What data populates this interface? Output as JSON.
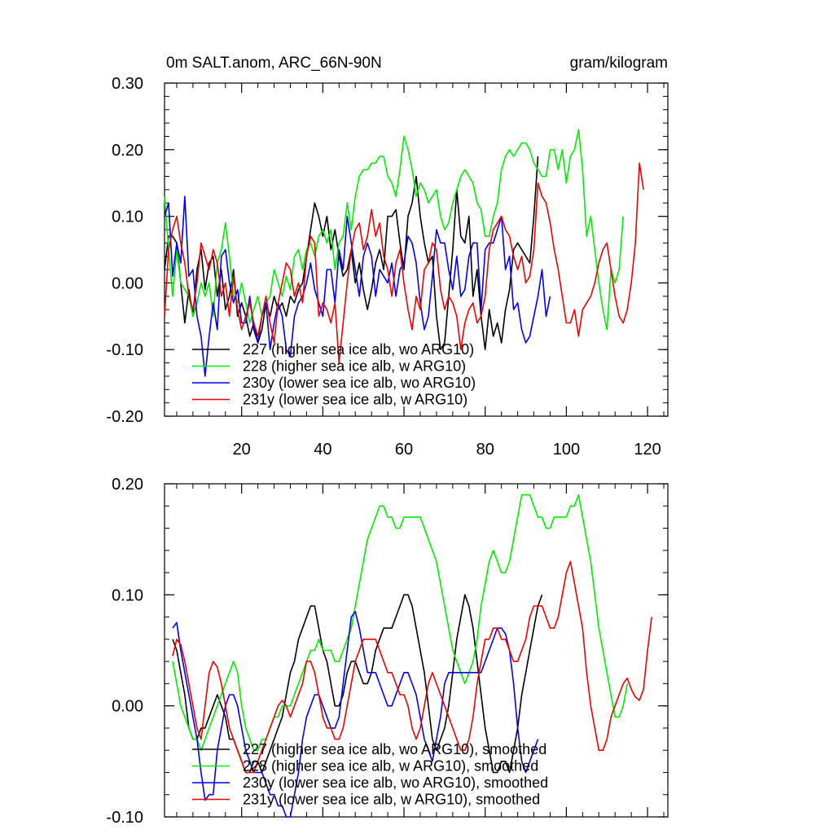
{
  "chart_data": [
    {
      "type": "line",
      "title_left": "0m SALT.anom, ARC_66N-90N",
      "title_right": "gram/kilogram",
      "xlim": [
        1,
        125
      ],
      "ylim": [
        -0.2,
        0.3
      ],
      "x_ticks": [
        20,
        40,
        60,
        80,
        100,
        120
      ],
      "x_tick_labels": [
        "20",
        "40",
        "60",
        "80",
        "100",
        "120"
      ],
      "y_ticks": [
        -0.2,
        -0.1,
        0.0,
        0.1,
        0.2,
        0.3
      ],
      "y_tick_labels": [
        "-0.20",
        "-0.10",
        "0.00",
        "0.10",
        "0.20",
        "0.30"
      ],
      "series": [
        {
          "name": "227 (higher sea ice alb, wo ARG10)",
          "color": "#000000",
          "x0": 1,
          "values": [
            0.02,
            0.07,
            0.07,
            0.06,
            0.0,
            -0.06,
            -0.01,
            -0.05,
            0.02,
            0.05,
            -0.01,
            0.03,
            0.04,
            -0.02,
            0.02,
            -0.04,
            -0.02,
            0.02,
            -0.05,
            -0.03,
            -0.05,
            -0.08,
            -0.06,
            -0.09,
            -0.07,
            -0.03,
            -0.05,
            -0.02,
            -0.04,
            -0.03,
            -0.05,
            -0.02,
            -0.03,
            -0.01,
            0.0,
            0.04,
            0.08,
            0.12,
            0.1,
            0.07,
            0.1,
            0.05,
            0.08,
            0.04,
            0.01,
            0.02,
            0.05,
            0.0,
            0.03,
            -0.01,
            -0.04,
            -0.01,
            0.03,
            0.05,
            0.02,
            0.1,
            0.1,
            0.11,
            0.06,
            0.02,
            0.1,
            0.12,
            0.16,
            0.1,
            0.06,
            0.03,
            0.04,
            -0.05,
            -0.1,
            -0.09,
            -0.02,
            0.05,
            0.14,
            0.07,
            0.06,
            0.1,
            -0.02,
            0.02,
            -0.05,
            -0.1,
            -0.04,
            -0.08,
            -0.06,
            -0.09,
            -0.04,
            -0.01,
            0.05,
            0.06,
            0.05,
            0.04,
            0.03,
            0.1,
            0.19
          ]
        },
        {
          "name": "228 (higher sea ice alb, w ARG10)",
          "color": "#00ee00",
          "x0": 1,
          "values": [
            0.13,
            0.05,
            -0.02,
            0.05,
            0.0,
            -0.01,
            -0.02,
            -0.05,
            -0.03,
            0.0,
            -0.02,
            0.0,
            -0.05,
            0.03,
            0.05,
            0.09,
            0.04,
            -0.02,
            -0.03,
            0.0,
            -0.03,
            -0.06,
            -0.04,
            -0.02,
            -0.05,
            -0.03,
            -0.02,
            0.02,
            0.0,
            -0.02,
            0.01,
            -0.01,
            0.04,
            0.05,
            0.02,
            0.05,
            0.06,
            0.04,
            0.07,
            0.08,
            0.06,
            0.08,
            0.02,
            0.06,
            0.07,
            0.12,
            0.08,
            0.13,
            0.16,
            0.17,
            0.17,
            0.18,
            0.18,
            0.19,
            0.19,
            0.16,
            0.15,
            0.13,
            0.17,
            0.22,
            0.2,
            0.17,
            0.13,
            0.15,
            0.14,
            0.12,
            0.13,
            0.14,
            0.1,
            0.08,
            0.09,
            0.12,
            0.14,
            0.16,
            0.17,
            0.16,
            0.15,
            0.12,
            0.11,
            0.07,
            0.07,
            0.1,
            0.12,
            0.17,
            0.19,
            0.2,
            0.19,
            0.2,
            0.21,
            0.21,
            0.2,
            0.18,
            0.17,
            0.16,
            0.16,
            0.2,
            0.2,
            0.17,
            0.2,
            0.15,
            0.19,
            0.2,
            0.23,
            0.17,
            0.07,
            0.1,
            0.05,
            0.0,
            -0.04,
            -0.07,
            0.02,
            0.0,
            0.02,
            0.1
          ]
        },
        {
          "name": "230y (lower sea ice alb, wo ARG10)",
          "color": "#0000ee",
          "x0": 1,
          "values": [
            0.1,
            0.12,
            0.01,
            0.06,
            0.03,
            0.13,
            0.01,
            0.02,
            -0.05,
            -0.08,
            -0.14,
            -0.08,
            -0.03,
            -0.07,
            0.04,
            0.05,
            0.0,
            -0.03,
            -0.01,
            -0.06,
            -0.06,
            -0.02,
            -0.07,
            -0.09,
            -0.05,
            -0.03,
            -0.1,
            -0.06,
            -0.03,
            -0.05,
            -0.1,
            -0.11,
            -0.05,
            -0.03,
            -0.02,
            0.0,
            0.03,
            -0.01,
            -0.03,
            -0.05,
            0.02,
            0.02,
            -0.03,
            0.05,
            0.02,
            0.1,
            0.06,
            0.02,
            -0.02,
            0.04,
            0.06,
            0.04,
            -0.02,
            0.02,
            0.01,
            0.0,
            0.03,
            -0.02,
            0.02,
            0.03,
            0.07,
            0.06,
            0.03,
            -0.03,
            -0.07,
            -0.05,
            0.01,
            0.08,
            0.06,
            0.06,
            0.02,
            -0.01,
            0.04,
            -0.02,
            -0.01,
            0.04,
            0.06,
            0.06,
            -0.04,
            0.05,
            0.06,
            0.06,
            0.08,
            0.1,
            0.02,
            0.04,
            -0.04,
            -0.03,
            -0.07,
            -0.09,
            -0.08,
            -0.05,
            -0.02,
            0.02,
            -0.05,
            -0.02
          ]
        },
        {
          "name": "231y (lower sea ice alb, w ARG10)",
          "color": "#ee0000",
          "x0": 1,
          "values": [
            -0.05,
            0.05,
            0.08,
            0.1,
            0.06,
            0.03,
            -0.02,
            -0.04,
            0.0,
            0.06,
            0.04,
            0.02,
            0.05,
            0.03,
            -0.02,
            0.0,
            -0.05,
            0.01,
            -0.04,
            -0.07,
            -0.05,
            -0.03,
            -0.06,
            -0.08,
            -0.05,
            -0.02,
            -0.06,
            -0.09,
            -0.03,
            0.0,
            0.03,
            0.02,
            -0.02,
            0.0,
            -0.03,
            0.04,
            0.07,
            0.06,
            -0.05,
            -0.03,
            -0.04,
            -0.06,
            -0.03,
            -0.12,
            -0.06,
            0.0,
            0.05,
            0.08,
            0.09,
            0.05,
            0.07,
            0.11,
            0.07,
            0.09,
            0.04,
            0.02,
            -0.02,
            0.03,
            0.05,
            0.0,
            -0.04,
            -0.07,
            -0.02,
            -0.04,
            0.02,
            0.03,
            0.06,
            0.05,
            -0.01,
            -0.04,
            -0.02,
            -0.03,
            -0.05,
            -0.1,
            -0.06,
            -0.04,
            -0.03,
            -0.06,
            -0.05,
            -0.02,
            0.05,
            0.08,
            0.09,
            0.1,
            0.08,
            0.07,
            0.04,
            0.02,
            0.04,
            0.0,
            0.01,
            0.05,
            0.15,
            0.13,
            0.12,
            0.09,
            0.05,
            0.02,
            -0.02,
            -0.06,
            -0.06,
            -0.04,
            -0.08,
            -0.04,
            -0.03,
            -0.02,
            0.0,
            0.03,
            0.05,
            0.06,
            0.02,
            -0.02,
            -0.05,
            -0.06,
            -0.04,
            0.0,
            0.06,
            0.18,
            0.14
          ]
        }
      ],
      "legend": [
        "227 (higher sea ice alb, wo ARG10)",
        "228 (higher sea ice alb, w ARG10)",
        "230y (lower sea ice alb, wo ARG10)",
        "231y (lower sea ice alb, w ARG10)"
      ]
    },
    {
      "type": "line",
      "xlim": [
        1,
        125
      ],
      "ylim": [
        -0.1,
        0.2
      ],
      "x_ticks": [
        20,
        40,
        60,
        80,
        100,
        120
      ],
      "y_ticks": [
        -0.1,
        0.0,
        0.1,
        0.2
      ],
      "y_tick_labels": [
        "-0.10",
        "0.00",
        "0.10",
        "0.20"
      ],
      "series": [
        {
          "name": "227 (higher sea ice alb, wo ARG10), smoothed",
          "color": "#000000",
          "x0": 3,
          "values": [
            0.06,
            0.05,
            0.03,
            0.01,
            -0.02,
            -0.03,
            -0.03,
            -0.02,
            -0.02,
            -0.01,
            0.0,
            0.01,
            0.0,
            -0.01,
            -0.03,
            -0.03,
            -0.04,
            -0.05,
            -0.06,
            -0.06,
            -0.05,
            -0.05,
            -0.06,
            -0.05,
            -0.04,
            -0.03,
            -0.02,
            -0.01,
            0.01,
            0.03,
            0.04,
            0.06,
            0.07,
            0.08,
            0.09,
            0.09,
            0.07,
            0.05,
            0.04,
            0.02,
            0.0,
            0.0,
            0.01,
            0.03,
            0.04,
            0.04,
            0.03,
            0.02,
            0.02,
            0.03,
            0.05,
            0.06,
            0.07,
            0.07,
            0.07,
            0.08,
            0.09,
            0.1,
            0.1,
            0.09,
            0.07,
            0.05,
            0.03,
            0.0,
            -0.03,
            -0.04,
            -0.03,
            -0.02,
            0.0,
            0.03,
            0.06,
            0.08,
            0.1,
            0.09,
            0.07,
            0.04,
            0.01,
            -0.02,
            -0.04,
            -0.06,
            -0.06,
            -0.05,
            -0.05,
            -0.06,
            -0.04,
            -0.02,
            0.01,
            0.03,
            0.05,
            0.07,
            0.09,
            0.1
          ]
        },
        {
          "name": "228 (higher sea ice alb, w ARG10), smoothed",
          "color": "#00ee00",
          "x0": 3,
          "values": [
            0.04,
            0.02,
            0.0,
            -0.01,
            -0.02,
            -0.03,
            -0.03,
            -0.04,
            -0.03,
            -0.02,
            -0.01,
            0.0,
            0.01,
            0.02,
            0.03,
            0.04,
            0.03,
            0.0,
            -0.02,
            -0.03,
            -0.04,
            -0.04,
            -0.03,
            -0.03,
            -0.02,
            -0.01,
            -0.01,
            0.0,
            0.0,
            0.0,
            0.01,
            0.02,
            0.03,
            0.04,
            0.05,
            0.05,
            0.06,
            0.05,
            0.05,
            0.05,
            0.04,
            0.04,
            0.05,
            0.06,
            0.07,
            0.09,
            0.11,
            0.13,
            0.15,
            0.16,
            0.17,
            0.18,
            0.18,
            0.17,
            0.17,
            0.16,
            0.16,
            0.17,
            0.17,
            0.17,
            0.17,
            0.17,
            0.16,
            0.15,
            0.14,
            0.13,
            0.11,
            0.09,
            0.07,
            0.05,
            0.04,
            0.03,
            0.02,
            0.03,
            0.04,
            0.06,
            0.09,
            0.11,
            0.13,
            0.14,
            0.13,
            0.12,
            0.12,
            0.13,
            0.15,
            0.17,
            0.19,
            0.19,
            0.19,
            0.18,
            0.17,
            0.17,
            0.16,
            0.16,
            0.17,
            0.17,
            0.17,
            0.17,
            0.18,
            0.18,
            0.19,
            0.17,
            0.15,
            0.13,
            0.1,
            0.07,
            0.05,
            0.03,
            0.01,
            -0.01,
            -0.01,
            0.0,
            0.02
          ]
        },
        {
          "name": "230y (lower sea ice alb, wo ARG10), smoothed",
          "color": "#0000ee",
          "x0": 3,
          "values": [
            0.07,
            0.075,
            0.05,
            0.03,
            0.01,
            -0.01,
            -0.03,
            -0.06,
            -0.085,
            -0.08,
            -0.08,
            -0.04,
            -0.02,
            0.0,
            0.01,
            0.01,
            0.0,
            -0.02,
            -0.04,
            -0.05,
            -0.06,
            -0.06,
            -0.06,
            -0.07,
            -0.08,
            -0.08,
            -0.09,
            -0.09,
            -0.1,
            -0.1,
            -0.08,
            -0.06,
            -0.03,
            -0.01,
            0.0,
            0.01,
            0.01,
            0.0,
            -0.01,
            -0.02,
            -0.02,
            -0.01,
            0.02,
            0.05,
            0.08,
            0.085,
            0.07,
            0.05,
            0.03,
            0.03,
            0.03,
            0.02,
            0.01,
            0.0,
            0.0,
            0.01,
            0.02,
            0.03,
            0.03,
            0.02,
            0.01,
            -0.01,
            -0.03,
            -0.04,
            -0.05,
            -0.03,
            -0.01,
            0.02,
            0.03,
            0.03,
            0.03,
            0.03,
            0.03,
            0.03,
            0.03,
            0.03,
            0.03,
            0.04,
            0.05,
            0.06,
            0.07,
            0.07,
            0.065,
            0.05,
            0.02,
            -0.02,
            -0.05,
            -0.06,
            -0.05,
            -0.04,
            -0.03
          ]
        },
        {
          "name": "231y (lower sea ice alb, w ARG10), smoothed",
          "color": "#ee0000",
          "x0": 3,
          "values": [
            0.045,
            0.06,
            0.055,
            0.04,
            0.02,
            0.0,
            -0.02,
            -0.03,
            0.0,
            0.03,
            0.04,
            0.035,
            0.02,
            0.0,
            -0.02,
            -0.03,
            -0.04,
            -0.05,
            -0.06,
            -0.06,
            -0.06,
            -0.05,
            -0.04,
            -0.03,
            -0.02,
            -0.01,
            0.0,
            0.005,
            0.0,
            -0.01,
            0.0,
            0.01,
            0.02,
            0.04,
            0.04,
            0.03,
            0.01,
            -0.01,
            -0.02,
            -0.02,
            -0.03,
            -0.03,
            -0.02,
            0.0,
            0.02,
            0.04,
            0.05,
            0.06,
            0.06,
            0.06,
            0.06,
            0.05,
            0.04,
            0.03,
            0.03,
            0.02,
            0.01,
            0.01,
            0.0,
            -0.02,
            -0.03,
            -0.02,
            0.0,
            0.02,
            0.03,
            0.02,
            0.01,
            0.0,
            -0.01,
            -0.02,
            -0.03,
            -0.04,
            -0.04,
            -0.03,
            -0.01,
            0.02,
            0.04,
            0.06,
            0.06,
            0.07,
            0.07,
            0.06,
            0.06,
            0.05,
            0.04,
            0.04,
            0.05,
            0.06,
            0.08,
            0.09,
            0.09,
            0.09,
            0.08,
            0.07,
            0.07,
            0.08,
            0.1,
            0.12,
            0.13,
            0.11,
            0.09,
            0.07,
            0.03,
            0.0,
            -0.02,
            -0.04,
            -0.04,
            -0.03,
            -0.01,
            0.0,
            0.01,
            0.02,
            0.025,
            0.015,
            0.008,
            0.005,
            0.015,
            0.05,
            0.08
          ]
        }
      ],
      "legend": [
        "227 (higher sea ice alb, wo ARG10), smoothed",
        "228 (higher sea ice alb, w ARG10), smoothed",
        "230y (lower sea ice alb, wo ARG10), smoothed",
        "231y (lower sea ice alb, w ARG10), smoothed"
      ]
    }
  ]
}
